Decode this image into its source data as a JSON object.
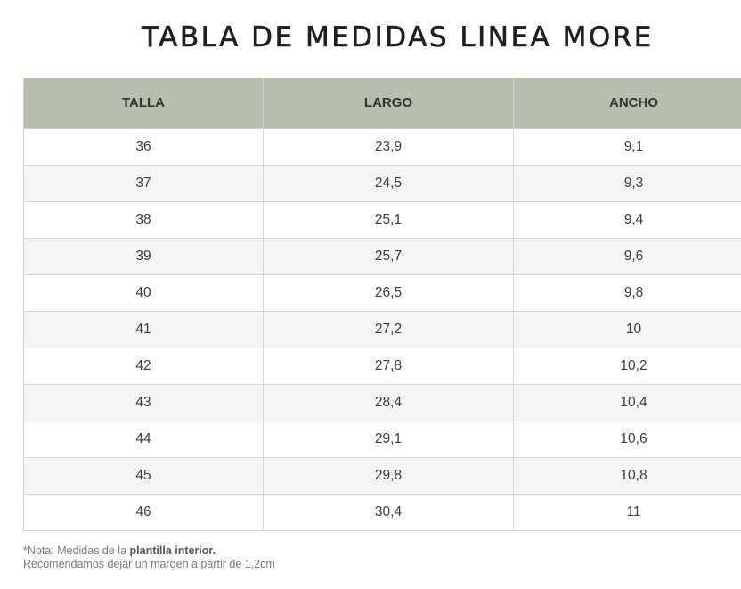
{
  "title": "TABLA DE MEDIDAS LINEA MORE",
  "table": {
    "headers": [
      "TALLA",
      "LARGO",
      "ANCHO"
    ],
    "rows": [
      [
        "36",
        "23,9",
        "9,1"
      ],
      [
        "37",
        "24,5",
        "9,3"
      ],
      [
        "38",
        "25,1",
        "9,4"
      ],
      [
        "39",
        "25,7",
        "9,6"
      ],
      [
        "40",
        "26,5",
        "9,8"
      ],
      [
        "41",
        "27,2",
        "10"
      ],
      [
        "42",
        "27,8",
        "10,2"
      ],
      [
        "43",
        "28,4",
        "10,4"
      ],
      [
        "44",
        "29,1",
        "10,6"
      ],
      [
        "45",
        "29,8",
        "10,8"
      ],
      [
        "46",
        "30,4",
        "11"
      ]
    ]
  },
  "note": {
    "prefix": "*Nota: Medidas de la ",
    "emphasis": "plantilla interior.",
    "line2": "Recomendamos dejar un margen a partir de 1,2cm"
  },
  "colors": {
    "header_bg": "#b7beab",
    "stripe_bg": "#f5f5f5",
    "border": "#d6d6d6"
  }
}
